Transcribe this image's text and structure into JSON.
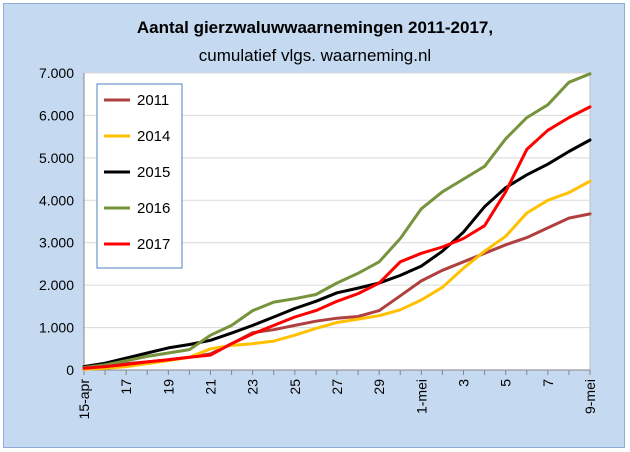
{
  "colors": {
    "frame_background": "#c5d9f1",
    "plot_background": "#ffffff",
    "gridline": "#d9d9d9"
  },
  "chart_data": {
    "type": "line",
    "title": "Aantal gierzwaluwwaarnemingen 2011-2017,",
    "subtitle": "cumulatief vlgs. waarneming.nl",
    "xlabel": "",
    "ylabel": "",
    "ylim": [
      0,
      7000
    ],
    "y_ticks": [
      "0",
      "1.000",
      "2.000",
      "3.000",
      "4.000",
      "5.000",
      "6.000",
      "7.000"
    ],
    "y_tick_values": [
      0,
      1000,
      2000,
      3000,
      4000,
      5000,
      6000,
      7000
    ],
    "x": [
      "15-apr",
      "16",
      "17",
      "18",
      "19",
      "20",
      "21",
      "22",
      "23",
      "24",
      "25",
      "26",
      "27",
      "28",
      "29",
      "30",
      "1-mei",
      "2",
      "3",
      "4",
      "5",
      "6",
      "7",
      "8",
      "9-mei"
    ],
    "x_tick_labels": [
      "15-apr",
      "17",
      "19",
      "21",
      "23",
      "25",
      "27",
      "29",
      "1-mei",
      "3",
      "5",
      "7",
      "9-mei"
    ],
    "grid": "horizontal",
    "legend_position": "top-left",
    "series": [
      {
        "name": "2011",
        "color": "#b04040",
        "values": [
          80,
          110,
          150,
          190,
          240,
          300,
          380,
          620,
          880,
          950,
          1050,
          1150,
          1220,
          1260,
          1400,
          1750,
          2100,
          2350,
          2550,
          2750,
          2950,
          3120,
          3350,
          3580,
          3680
        ]
      },
      {
        "name": "2014",
        "color": "#ffc000",
        "values": [
          20,
          40,
          80,
          150,
          220,
          300,
          500,
          580,
          620,
          680,
          820,
          980,
          1120,
          1200,
          1280,
          1420,
          1650,
          1950,
          2400,
          2800,
          3150,
          3700,
          4000,
          4180,
          4450
        ]
      },
      {
        "name": "2015",
        "color": "#000000",
        "values": [
          80,
          160,
          280,
          400,
          520,
          600,
          700,
          870,
          1050,
          1250,
          1450,
          1620,
          1820,
          1930,
          2050,
          2230,
          2450,
          2800,
          3250,
          3850,
          4300,
          4600,
          4850,
          5150,
          5420
        ]
      },
      {
        "name": "2016",
        "color": "#77933c",
        "values": [
          60,
          120,
          220,
          320,
          400,
          480,
          820,
          1050,
          1400,
          1600,
          1680,
          1780,
          2050,
          2280,
          2550,
          3100,
          3800,
          4200,
          4500,
          4800,
          5450,
          5950,
          6250,
          6780,
          6980
        ]
      },
      {
        "name": "2017",
        "color": "#ff0000",
        "values": [
          40,
          80,
          130,
          190,
          240,
          300,
          350,
          620,
          850,
          1050,
          1250,
          1400,
          1620,
          1800,
          2050,
          2550,
          2750,
          2900,
          3100,
          3400,
          4200,
          5200,
          5650,
          5950,
          6200
        ]
      }
    ]
  }
}
